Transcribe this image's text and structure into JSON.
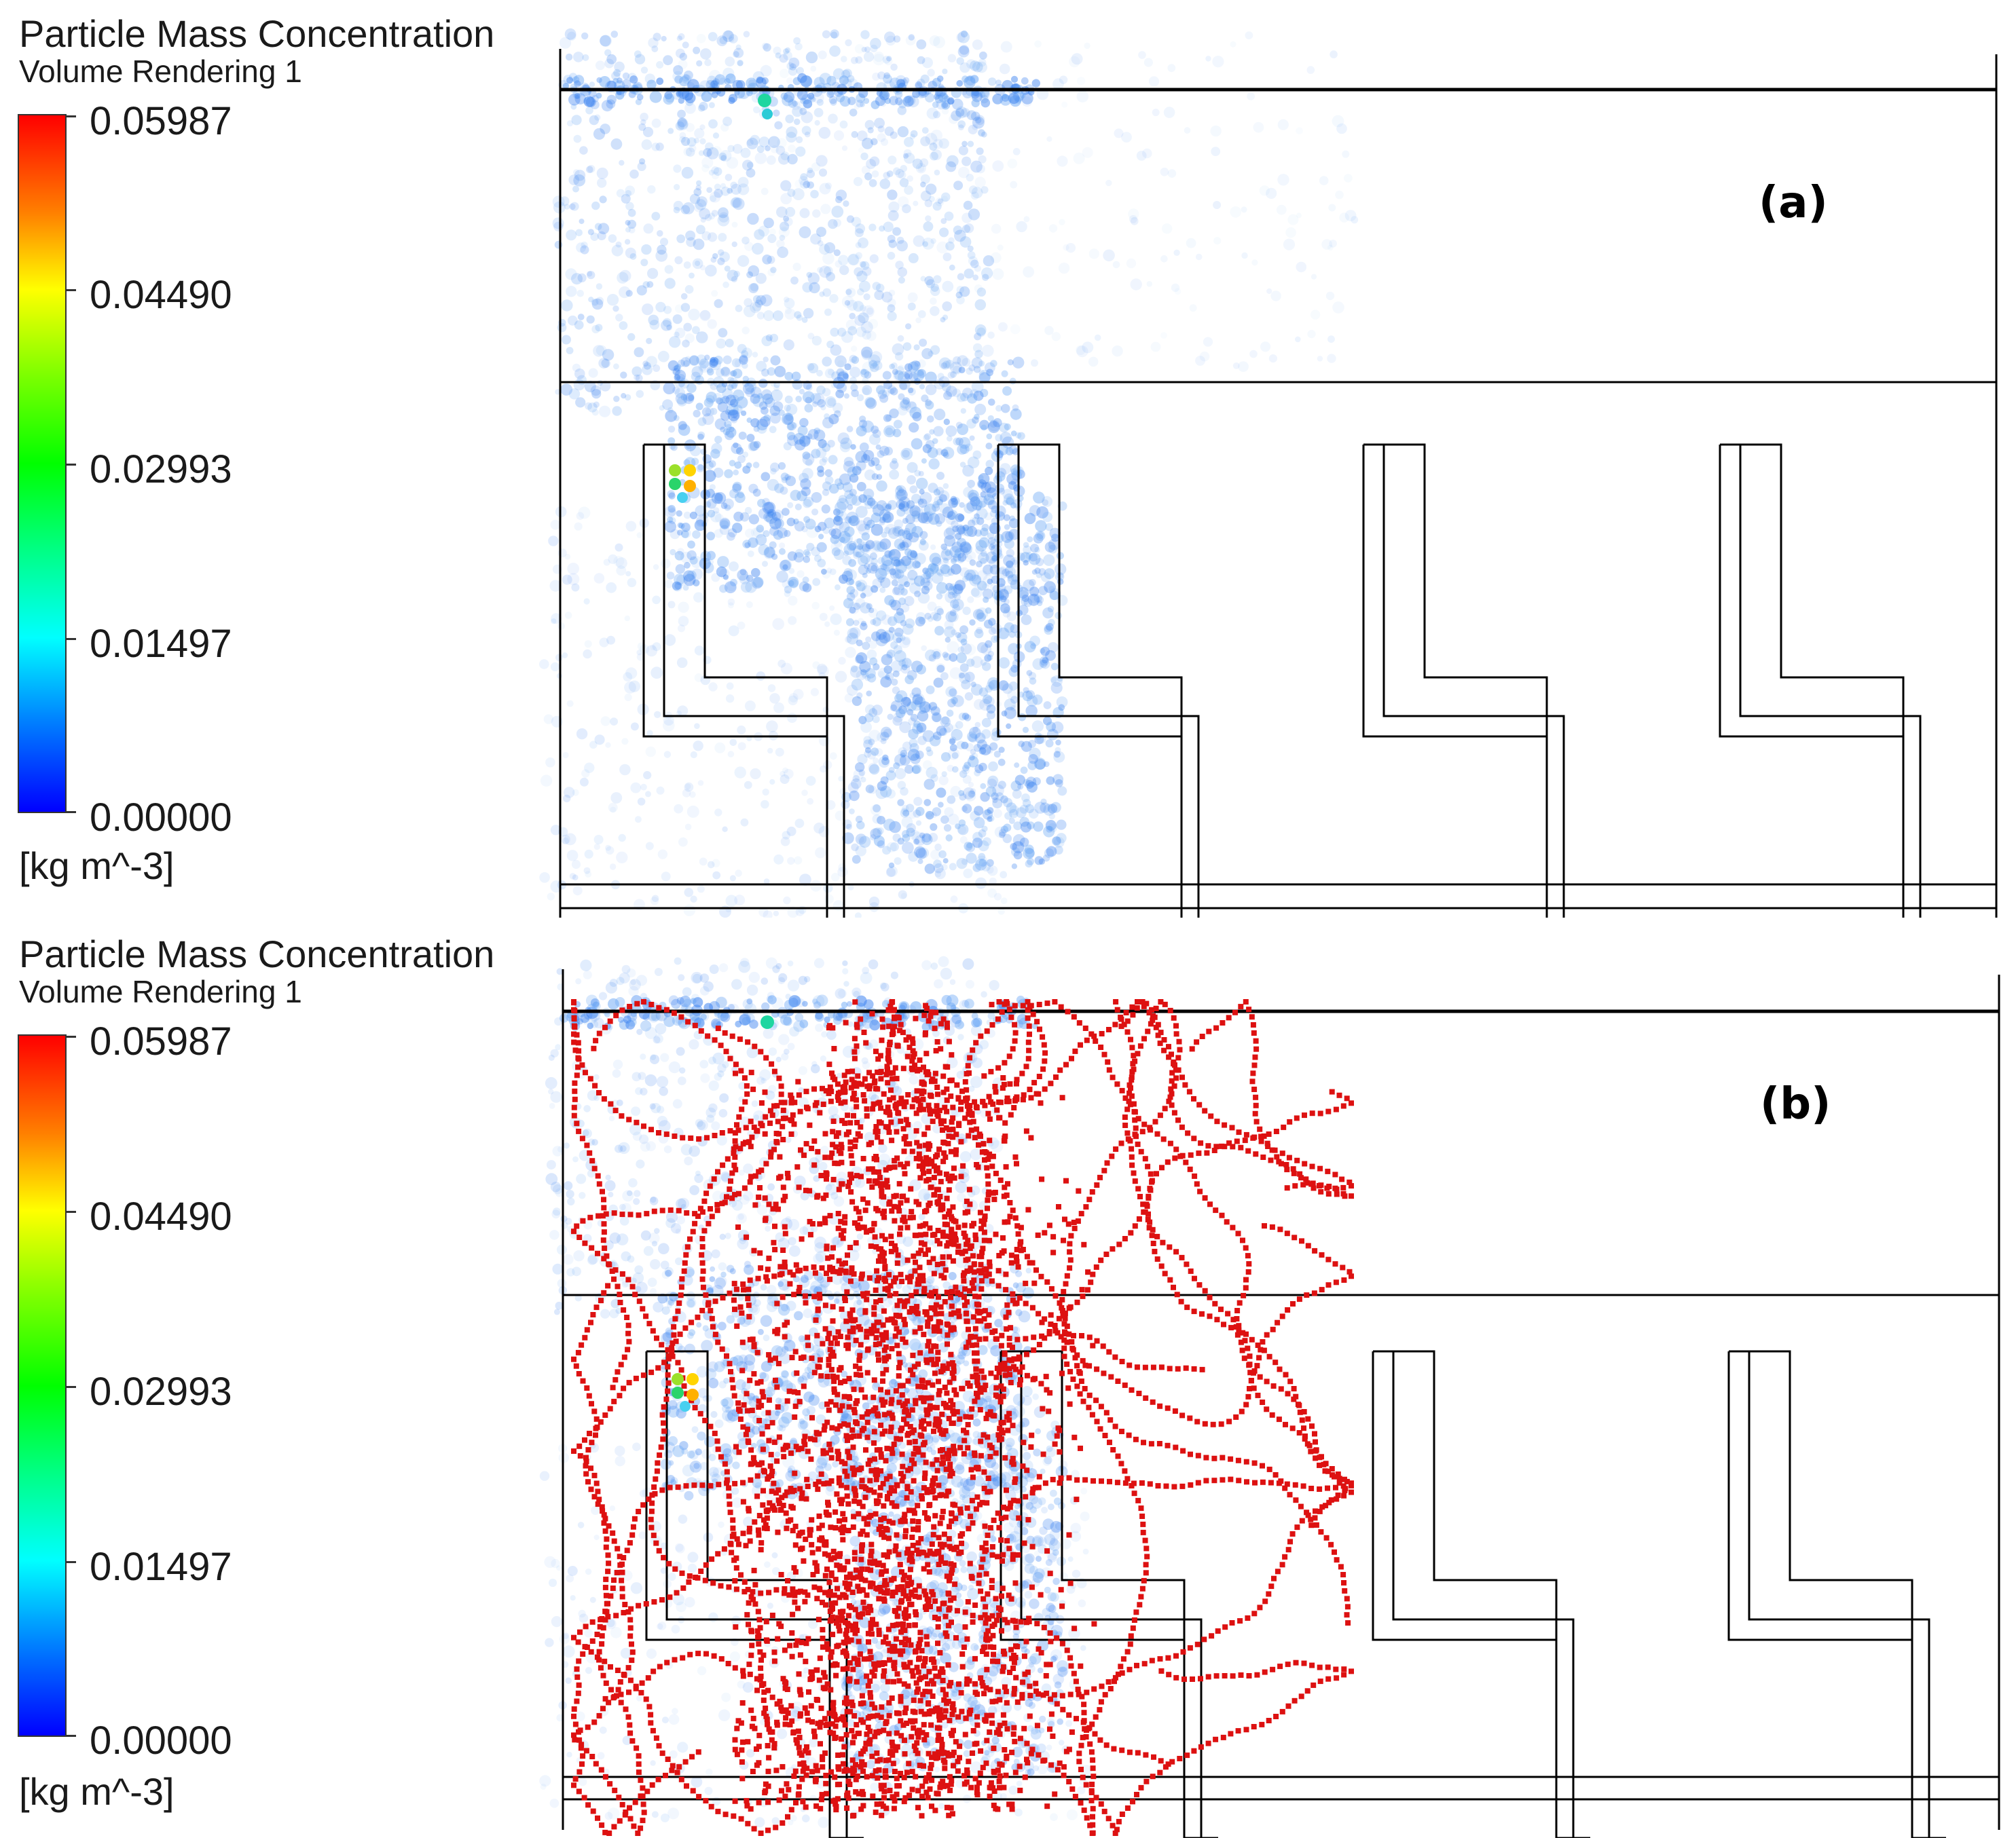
{
  "colors": {
    "outline": "#000000",
    "particle_track": "#dd1111",
    "colormap": [
      "#ff0000",
      "#ff8000",
      "#ffff00",
      "#00ff00",
      "#00ffff",
      "#0080ff",
      "#0000ff"
    ]
  },
  "panels": [
    {
      "id": "a",
      "label": "(a)",
      "legend": {
        "title": "Particle Mass Concentration",
        "subtitle": "Volume Rendering 1",
        "ticks": [
          "0.05987",
          "0.04490",
          "0.02993",
          "0.01497",
          "0.00000"
        ],
        "units": "[kg m^-3]"
      },
      "particle_tracks_visible": false
    },
    {
      "id": "b",
      "label": "(b)",
      "legend": {
        "title": "Particle Mass Concentration",
        "subtitle": "Volume Rendering 1",
        "ticks": [
          "0.05987",
          "0.04490",
          "0.02993",
          "0.01497",
          "0.00000"
        ],
        "units": "[kg m^-3]"
      },
      "particle_tracks_visible": true
    }
  ]
}
